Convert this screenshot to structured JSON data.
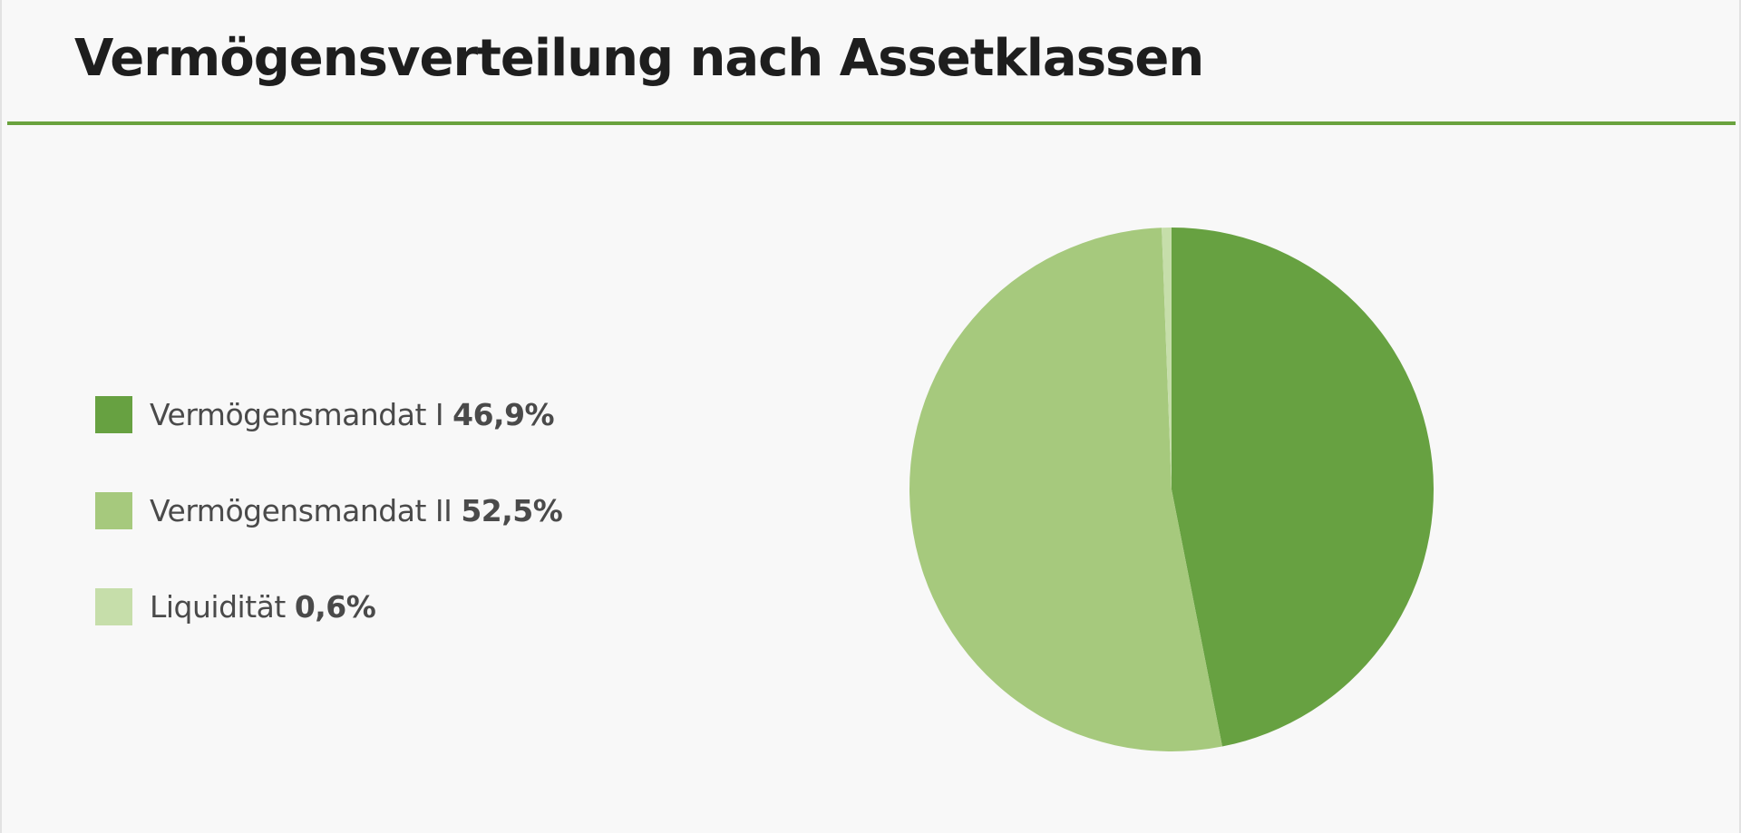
{
  "header": {
    "title": "Vermögensverteilung nach Assetklassen"
  },
  "legend": {
    "items": [
      {
        "label": "Vermögensmandat I",
        "value_text": "46,9%",
        "color": "#67a141"
      },
      {
        "label": "Vermögensmandat II",
        "value_text": "52,5%",
        "color": "#a6c97d"
      },
      {
        "label": "Liquidität",
        "value_text": "0,6%",
        "color": "#c6deaa"
      }
    ]
  },
  "colors": {
    "accent": "#6aa33e",
    "background": "#f8f8f8",
    "title_text": "#1e1e1e",
    "legend_text": "#4a4a4a"
  },
  "chart_data": {
    "type": "pie",
    "title": "Vermögensverteilung nach Assetklassen",
    "categories": [
      "Vermögensmandat I",
      "Vermögensmandat II",
      "Liquidität"
    ],
    "values": [
      46.9,
      52.5,
      0.6
    ],
    "colors": [
      "#67a141",
      "#a6c97d",
      "#c6deaa"
    ],
    "start_angle": "12 o'clock",
    "direction": "clockwise",
    "legend_placement": "left"
  }
}
